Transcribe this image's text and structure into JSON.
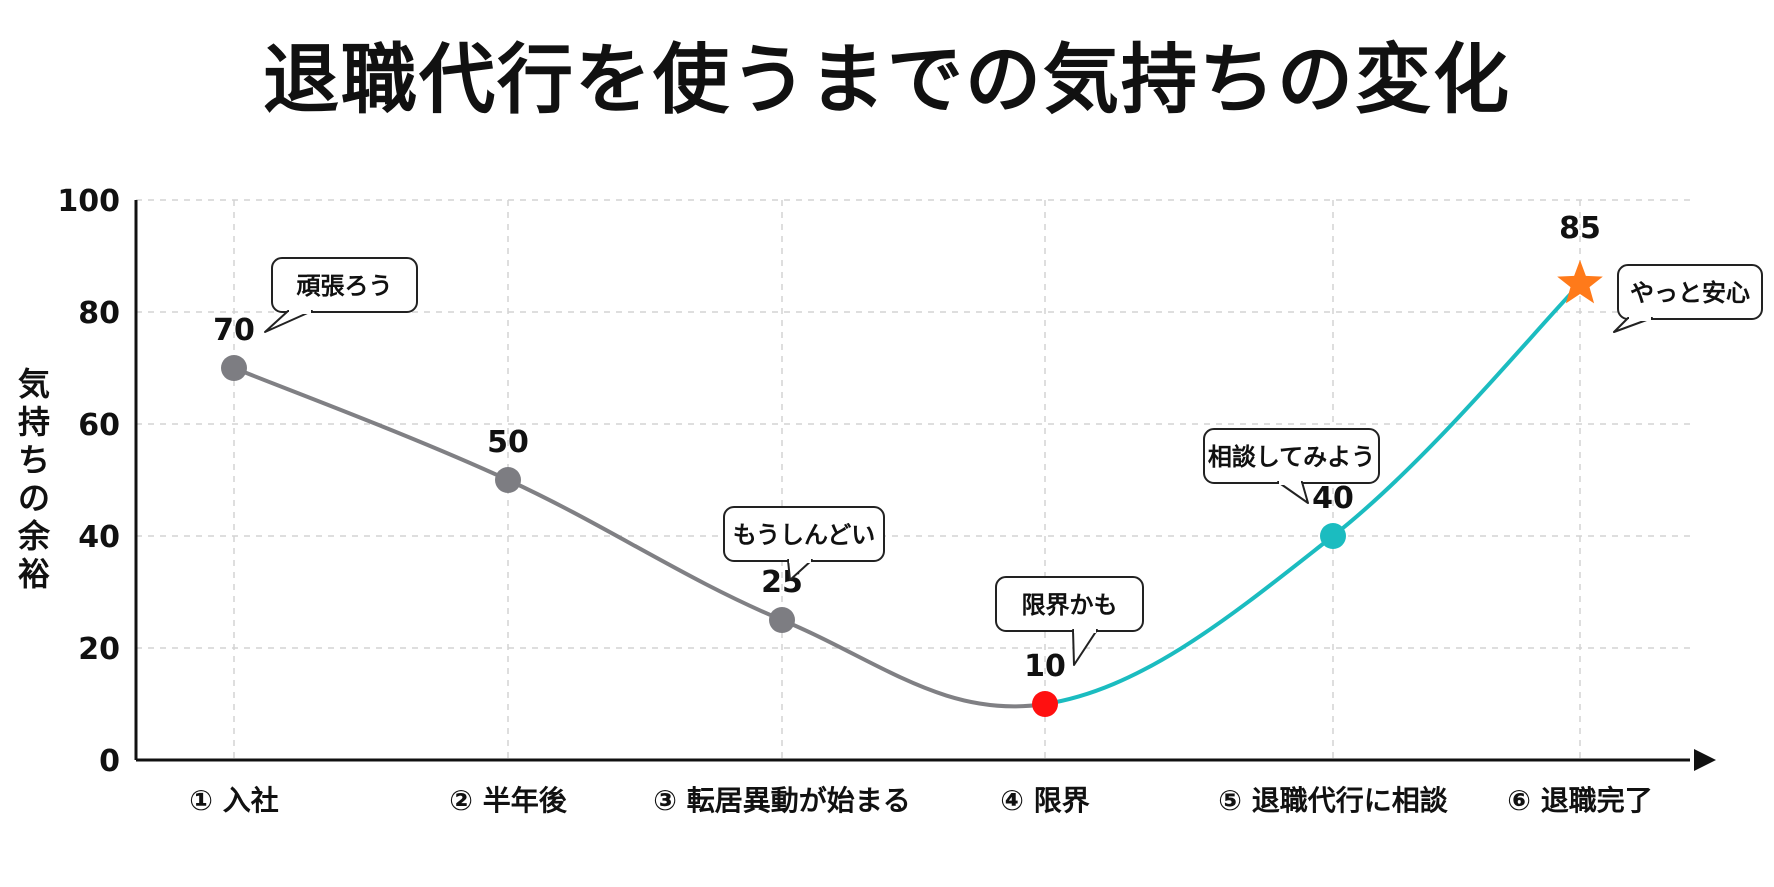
{
  "chart_data": {
    "type": "line",
    "title": "退職代行を使うまでの気持ちの変化",
    "xlabel": "",
    "ylabel": "気持ちの余裕",
    "ylim": [
      0,
      100
    ],
    "yticks": [
      0,
      20,
      40,
      60,
      80,
      100
    ],
    "grid": true,
    "categories": [
      "① 入社",
      "② 半年後",
      "③ 転居異動が始まる",
      "④ 限界",
      "⑤ 退職代行に相談",
      "⑥ 退職完了"
    ],
    "values": [
      70,
      50,
      25,
      10,
      40,
      85
    ],
    "value_labels": [
      "70",
      "50",
      "25",
      "10",
      "40",
      "85"
    ],
    "annotations": [
      "頑張ろう",
      "",
      "もうしんどい",
      "限界かも",
      "相談してみよう",
      "やっと安心"
    ],
    "colors": {
      "before_line": "#808084",
      "after_line": "#1bbcc0",
      "point_gray": "#7d7d82",
      "point_low": "#ff1010",
      "point_teal": "#1bbcc0",
      "point_star": "#ff7a1a",
      "grid": "#d4d4d4",
      "axis": "#111111"
    },
    "markers": [
      "circle",
      "circle",
      "circle",
      "circle",
      "circle",
      "star"
    ]
  }
}
